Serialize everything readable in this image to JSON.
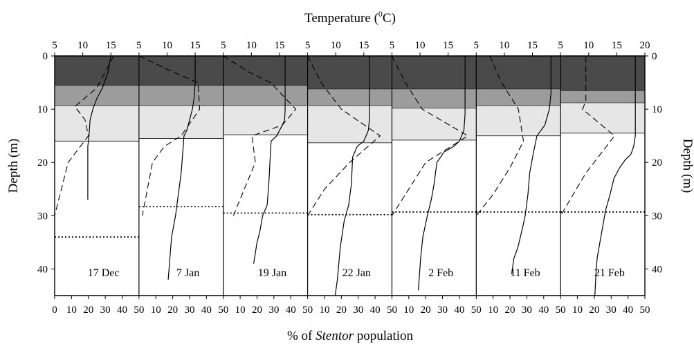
{
  "chart_data": {
    "type": "line",
    "title": "",
    "top_axis": {
      "label_pre": "Temperature (",
      "label_sup": "0",
      "label_post": "C)",
      "range": [
        5,
        20
      ],
      "ticks_by_panel": [
        [
          "5",
          "10",
          "15"
        ],
        [
          "5",
          "10",
          "15"
        ],
        [
          "5",
          "10",
          "15"
        ],
        [
          "5",
          "10",
          "15"
        ],
        [
          "5",
          "10",
          "15"
        ],
        [
          "5",
          "10",
          "15"
        ],
        [
          "5",
          "10",
          "15",
          "20"
        ]
      ]
    },
    "bottom_axis": {
      "label_pre": "% of ",
      "label_italic": "Stentor",
      "label_post": " population",
      "range": [
        0,
        50
      ],
      "ticks_by_panel": [
        [
          "0",
          "10",
          "20",
          "30",
          "40",
          "50"
        ],
        [
          "10",
          "20",
          "30",
          "40",
          "50"
        ],
        [
          "10",
          "20",
          "30",
          "40",
          "50"
        ],
        [
          "10",
          "20",
          "30",
          "40",
          "50"
        ],
        [
          "10",
          "20",
          "30",
          "40",
          "50"
        ],
        [
          "10",
          "20",
          "30",
          "40",
          "50"
        ],
        [
          "10",
          "20",
          "30",
          "40",
          "50"
        ]
      ]
    },
    "y_axis": {
      "label": "Depth (m)",
      "range": [
        0,
        45
      ],
      "ticks": [
        0,
        10,
        20,
        30,
        40
      ],
      "inverted": true
    },
    "line_styles": {
      "temperature": "solid",
      "stentor_percent": "dashed",
      "threshold_depth": "dotted"
    },
    "shading_colors": {
      "dark": "#4a4a4a",
      "medium": "#9c9c9c",
      "light": "#e6e6e6"
    },
    "panels": [
      {
        "date": "17 Dec",
        "layers": {
          "dark_bottom": 5.5,
          "medium_bottom": 9.3,
          "light_bottom": 16
        },
        "threshold_depth": 34,
        "temperature": [
          [
            15,
            0
          ],
          [
            14.5,
            3
          ],
          [
            13.5,
            6
          ],
          [
            12.5,
            8
          ],
          [
            11.8,
            10
          ],
          [
            11.3,
            12
          ],
          [
            11.1,
            15
          ],
          [
            10.9,
            17
          ],
          [
            10.9,
            27
          ]
        ],
        "stentor_percent": [
          [
            35,
            0
          ],
          [
            30,
            3
          ],
          [
            25,
            6
          ],
          [
            12,
            9.5
          ],
          [
            18,
            12
          ],
          [
            20,
            15
          ],
          [
            8,
            20
          ],
          [
            0,
            30
          ]
        ]
      },
      {
        "date": "7 Jan",
        "layers": {
          "dark_bottom": 5.5,
          "medium_bottom": 9.3,
          "light_bottom": 15.5
        },
        "threshold_depth": 28.3,
        "temperature": [
          [
            15,
            0
          ],
          [
            15,
            5
          ],
          [
            14.8,
            8
          ],
          [
            14.5,
            10
          ],
          [
            14,
            12
          ],
          [
            13.5,
            14
          ],
          [
            13,
            15
          ],
          [
            12.8,
            18
          ],
          [
            12.5,
            22
          ],
          [
            12,
            26
          ],
          [
            11.5,
            30
          ],
          [
            10.8,
            34
          ],
          [
            10.5,
            38
          ],
          [
            10.2,
            42
          ]
        ],
        "stentor_percent": [
          [
            0,
            0
          ],
          [
            20,
            3
          ],
          [
            35,
            5
          ],
          [
            36,
            10
          ],
          [
            25,
            15
          ],
          [
            15,
            17
          ],
          [
            8,
            20
          ],
          [
            2,
            30
          ]
        ]
      },
      {
        "date": "19 Jan",
        "layers": {
          "dark_bottom": 5.5,
          "medium_bottom": 9.3,
          "light_bottom": 14.8
        },
        "threshold_depth": 29.5,
        "temperature": [
          [
            16,
            0
          ],
          [
            16,
            10
          ],
          [
            15.9,
            12
          ],
          [
            15.5,
            13
          ],
          [
            14.5,
            15
          ],
          [
            13.5,
            16
          ],
          [
            13.3,
            20
          ],
          [
            13.1,
            24
          ],
          [
            12.8,
            28
          ],
          [
            12,
            30
          ],
          [
            11.5,
            33
          ],
          [
            11,
            35
          ],
          [
            10.4,
            39
          ]
        ],
        "stentor_percent": [
          [
            0,
            0
          ],
          [
            15,
            3
          ],
          [
            28,
            5
          ],
          [
            43,
            10
          ],
          [
            35,
            13
          ],
          [
            17,
            15
          ],
          [
            19,
            20
          ],
          [
            6,
            30
          ]
        ]
      },
      {
        "date": "22 Jan",
        "layers": {
          "dark_bottom": 6.2,
          "medium_bottom": 9.3,
          "light_bottom": 16.3
        },
        "threshold_depth": 29.8,
        "temperature": [
          [
            16,
            0
          ],
          [
            16,
            12
          ],
          [
            15.8,
            14
          ],
          [
            15,
            16
          ],
          [
            13.8,
            17
          ],
          [
            13,
            19
          ],
          [
            12.8,
            24
          ],
          [
            12.3,
            28
          ],
          [
            11.5,
            31
          ],
          [
            10.8,
            36
          ],
          [
            10.3,
            42
          ],
          [
            9.9,
            45
          ]
        ],
        "stentor_percent": [
          [
            0,
            0
          ],
          [
            8,
            5
          ],
          [
            20,
            10
          ],
          [
            43,
            15
          ],
          [
            25,
            20
          ],
          [
            10,
            25
          ],
          [
            0,
            30
          ]
        ]
      },
      {
        "date": "2 Feb",
        "layers": {
          "dark_bottom": 6.2,
          "medium_bottom": 9.8,
          "light_bottom": 15.8
        },
        "threshold_depth": 29.3,
        "temperature": [
          [
            18,
            0
          ],
          [
            18,
            11
          ],
          [
            17.8,
            14
          ],
          [
            17,
            16
          ],
          [
            16,
            17
          ],
          [
            14.3,
            18
          ],
          [
            13,
            20
          ],
          [
            12.5,
            24
          ],
          [
            12,
            27
          ],
          [
            11.3,
            30
          ],
          [
            10.5,
            34
          ],
          [
            10.1,
            38
          ],
          [
            9.7,
            44
          ]
        ],
        "stentor_percent": [
          [
            0,
            0
          ],
          [
            8,
            5
          ],
          [
            18,
            10
          ],
          [
            45,
            15
          ],
          [
            20,
            20
          ],
          [
            10,
            25
          ],
          [
            0,
            30
          ]
        ]
      },
      {
        "date": "11 Feb",
        "layers": {
          "dark_bottom": 6.2,
          "medium_bottom": 9.3,
          "light_bottom": 15
        },
        "threshold_depth": 29.3,
        "temperature": [
          [
            18.3,
            0
          ],
          [
            18.3,
            7
          ],
          [
            18,
            10
          ],
          [
            17.2,
            13
          ],
          [
            15.8,
            15
          ],
          [
            15.2,
            18
          ],
          [
            14.5,
            22
          ],
          [
            14.2,
            26
          ],
          [
            13.7,
            30
          ],
          [
            13.3,
            32
          ],
          [
            12.4,
            36
          ],
          [
            11.7,
            38
          ],
          [
            11.3,
            41
          ]
        ],
        "stentor_percent": [
          [
            8,
            0
          ],
          [
            15,
            5
          ],
          [
            25,
            10
          ],
          [
            28,
            16
          ],
          [
            20,
            21
          ],
          [
            10,
            26
          ],
          [
            0,
            30
          ]
        ]
      },
      {
        "date": "21 Feb",
        "layers": {
          "dark_bottom": 6.5,
          "medium_bottom": 8.8,
          "light_bottom": 14.5
        },
        "threshold_depth": 29.3,
        "temperature": [
          [
            18.3,
            0
          ],
          [
            18.3,
            15
          ],
          [
            18,
            17
          ],
          [
            17.5,
            18.5
          ],
          [
            16.5,
            19.5
          ],
          [
            15.5,
            21
          ],
          [
            14.5,
            23
          ],
          [
            13.8,
            26
          ],
          [
            13,
            29
          ],
          [
            12.5,
            32
          ],
          [
            12,
            35
          ],
          [
            11.5,
            38
          ],
          [
            11.3,
            41
          ],
          [
            11.1,
            45
          ]
        ],
        "stentor_percent": [
          [
            15,
            0
          ],
          [
            15,
            5
          ],
          [
            15,
            8.5
          ],
          [
            13,
            10
          ],
          [
            32,
            15
          ],
          [
            15,
            22
          ],
          [
            0,
            30
          ]
        ]
      }
    ]
  }
}
